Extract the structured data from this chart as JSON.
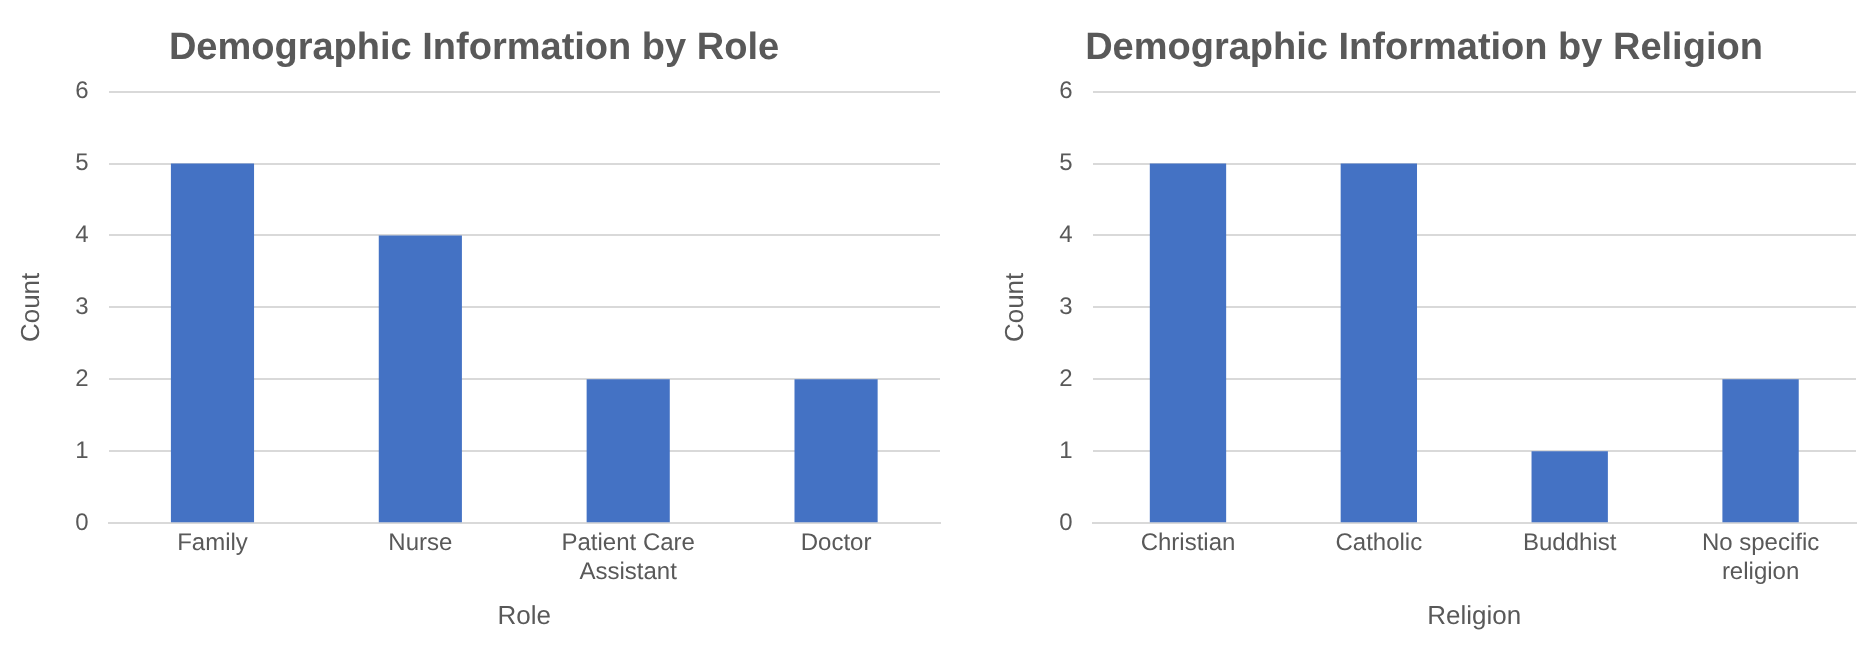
{
  "chart_data": [
    {
      "type": "bar",
      "title": "Demographic Information by Role",
      "xlabel": "Role",
      "ylabel": "Count",
      "categories": [
        "Family",
        "Nurse",
        "Patient Care Assistant",
        "Doctor"
      ],
      "values": [
        5,
        4,
        2,
        2
      ],
      "color": "#4472c4",
      "ylim": [
        0,
        6
      ],
      "yticks": [
        0,
        1,
        2,
        3,
        4,
        5,
        6
      ],
      "grid": "y"
    },
    {
      "type": "bar",
      "title": "Demographic Information by Religion",
      "xlabel": "Religion",
      "ylabel": "Count",
      "categories": [
        "Christian",
        "Catholic",
        "Buddhist",
        "No specific religion"
      ],
      "values": [
        5,
        5,
        1,
        2
      ],
      "color": "#4472c4",
      "ylim": [
        0,
        6
      ],
      "yticks": [
        0,
        1,
        2,
        3,
        4,
        5,
        6
      ],
      "grid": "y"
    }
  ]
}
